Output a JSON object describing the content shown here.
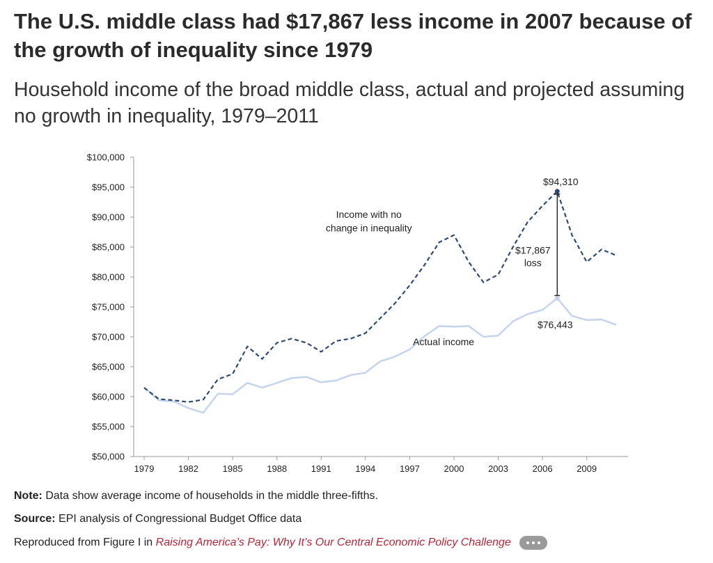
{
  "header": {
    "title": "The U.S. middle class had $17,867 less income in 2007 because of the growth of inequality since 1979",
    "subtitle": "Household income of the broad middle class, actual and projected assuming no growth in inequality, 1979–2011"
  },
  "colors": {
    "projected": "#2e4a70",
    "actual": "#c5d4ec",
    "axis": "#999999",
    "link": "#b0283a"
  },
  "chart_data": {
    "type": "line",
    "title": "",
    "xlabel": "",
    "ylabel": "",
    "x": [
      1979,
      1980,
      1981,
      1982,
      1983,
      1984,
      1985,
      1986,
      1987,
      1988,
      1989,
      1990,
      1991,
      1992,
      1993,
      1994,
      1995,
      1996,
      1997,
      1998,
      1999,
      2000,
      2001,
      2002,
      2003,
      2004,
      2005,
      2006,
      2007,
      2008,
      2009,
      2010,
      2011
    ],
    "xlim": [
      1979,
      2011.8
    ],
    "ylim": [
      50000,
      100000
    ],
    "x_ticks": [
      1979,
      1982,
      1985,
      1988,
      1991,
      1994,
      1997,
      2000,
      2003,
      2006,
      2009
    ],
    "x_tick_labels": [
      "1979",
      "1982",
      "1985",
      "1988",
      "1991",
      "1994",
      "1997",
      "2000",
      "2003",
      "2006",
      "2009"
    ],
    "y_ticks": [
      50000,
      55000,
      60000,
      65000,
      70000,
      75000,
      80000,
      85000,
      90000,
      95000,
      100000
    ],
    "y_tick_labels": [
      "$50,000",
      "$55,000",
      "$60,000",
      "$65,000",
      "$70,000",
      "$75,000",
      "$80,000",
      "$85,000",
      "$90,000",
      "$95,000",
      "$100,000"
    ],
    "grid": false,
    "legend": "none",
    "series": [
      {
        "name": "Income with no change in inequality",
        "style": "dashed",
        "values": [
          61500,
          59600,
          59400,
          59100,
          59500,
          62900,
          63800,
          68400,
          66300,
          69000,
          69700,
          69000,
          67500,
          69300,
          69700,
          70600,
          73100,
          75600,
          78600,
          82000,
          85800,
          87000,
          82500,
          79100,
          80400,
          85000,
          89200,
          91900,
          94310,
          87000,
          82500,
          84600,
          83600
        ]
      },
      {
        "name": "Actual income",
        "style": "solid",
        "values": [
          61500,
          59400,
          59200,
          58100,
          57300,
          60500,
          60400,
          62300,
          61500,
          62300,
          63100,
          63300,
          62400,
          62700,
          63600,
          64000,
          65900,
          66700,
          67900,
          70100,
          71800,
          71700,
          71800,
          70000,
          70200,
          72600,
          73800,
          74500,
          76443,
          73500,
          72800,
          72900,
          72000
        ]
      }
    ],
    "annotations": {
      "projected_label": [
        "Income with no",
        "change in inequality"
      ],
      "actual_label": "Actual income",
      "peak_value": "$94,310",
      "actual_value": "$76,443",
      "gap_label": [
        "$17,867",
        "loss"
      ],
      "gap_year": 2007
    }
  },
  "notes": {
    "note_label": "Note:",
    "note_text": "Data show average income of households in the middle three-fifths.",
    "source_label": "Source:",
    "source_text": "EPI analysis of Congressional Budget Office data",
    "reproduced_prefix": "Reproduced from Figure I in",
    "reproduced_link": "Raising America’s Pay: Why It’s Our Central Economic Policy Challenge"
  }
}
